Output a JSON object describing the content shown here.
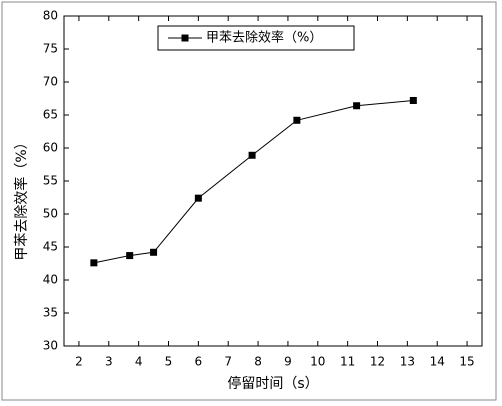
{
  "chart_data": {
    "type": "line",
    "x_label": "停留时间（s）",
    "y_label": "甲苯去除效率（%）",
    "series": [
      {
        "name": "甲苯去除效率（%）",
        "color": "#000000",
        "x": [
          2.5,
          3.7,
          4.5,
          6.0,
          7.8,
          9.3,
          11.3,
          13.2
        ],
        "values": [
          42.6,
          43.7,
          44.2,
          52.4,
          58.9,
          64.2,
          66.4,
          67.2
        ]
      }
    ],
    "xlim": [
      1.5,
      15.5
    ],
    "xticks": [
      2,
      3,
      4,
      5,
      6,
      7,
      8,
      9,
      10,
      11,
      12,
      13,
      14,
      15
    ],
    "ylim": [
      30,
      80
    ],
    "yticks": [
      30,
      35,
      40,
      45,
      50,
      55,
      60,
      65,
      70,
      75,
      80
    ],
    "legend": "top-center"
  }
}
